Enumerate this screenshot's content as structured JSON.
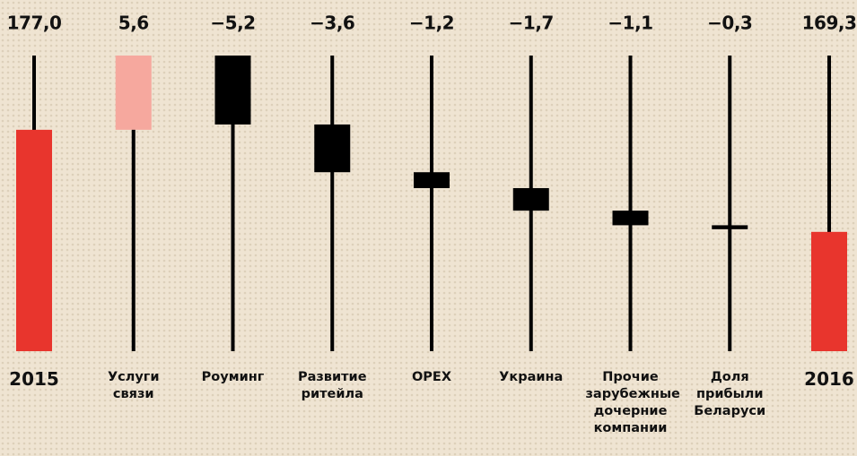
{
  "chart_data": {
    "type": "waterfall",
    "categories": [
      "2015",
      "Услуги связи",
      "Роуминг",
      "Развитие ритейла",
      "OPEX",
      "Украина",
      "Прочие зарубежные дочерние компании",
      "Доля прибыли Беларуси",
      "2016"
    ],
    "values": [
      177.0,
      5.6,
      -5.2,
      -3.6,
      -1.2,
      -1.7,
      -1.1,
      -0.3,
      169.3
    ],
    "value_labels": [
      "177,0",
      "5,6",
      "−5,2",
      "−3,6",
      "−1,2",
      "−1,7",
      "−1,1",
      "−0,3",
      "169,3"
    ],
    "total_color": "#e8352d",
    "increase_color": "#f6a89e",
    "decrease_color": "#000000",
    "ylim": [
      160.3,
      182.6
    ]
  }
}
